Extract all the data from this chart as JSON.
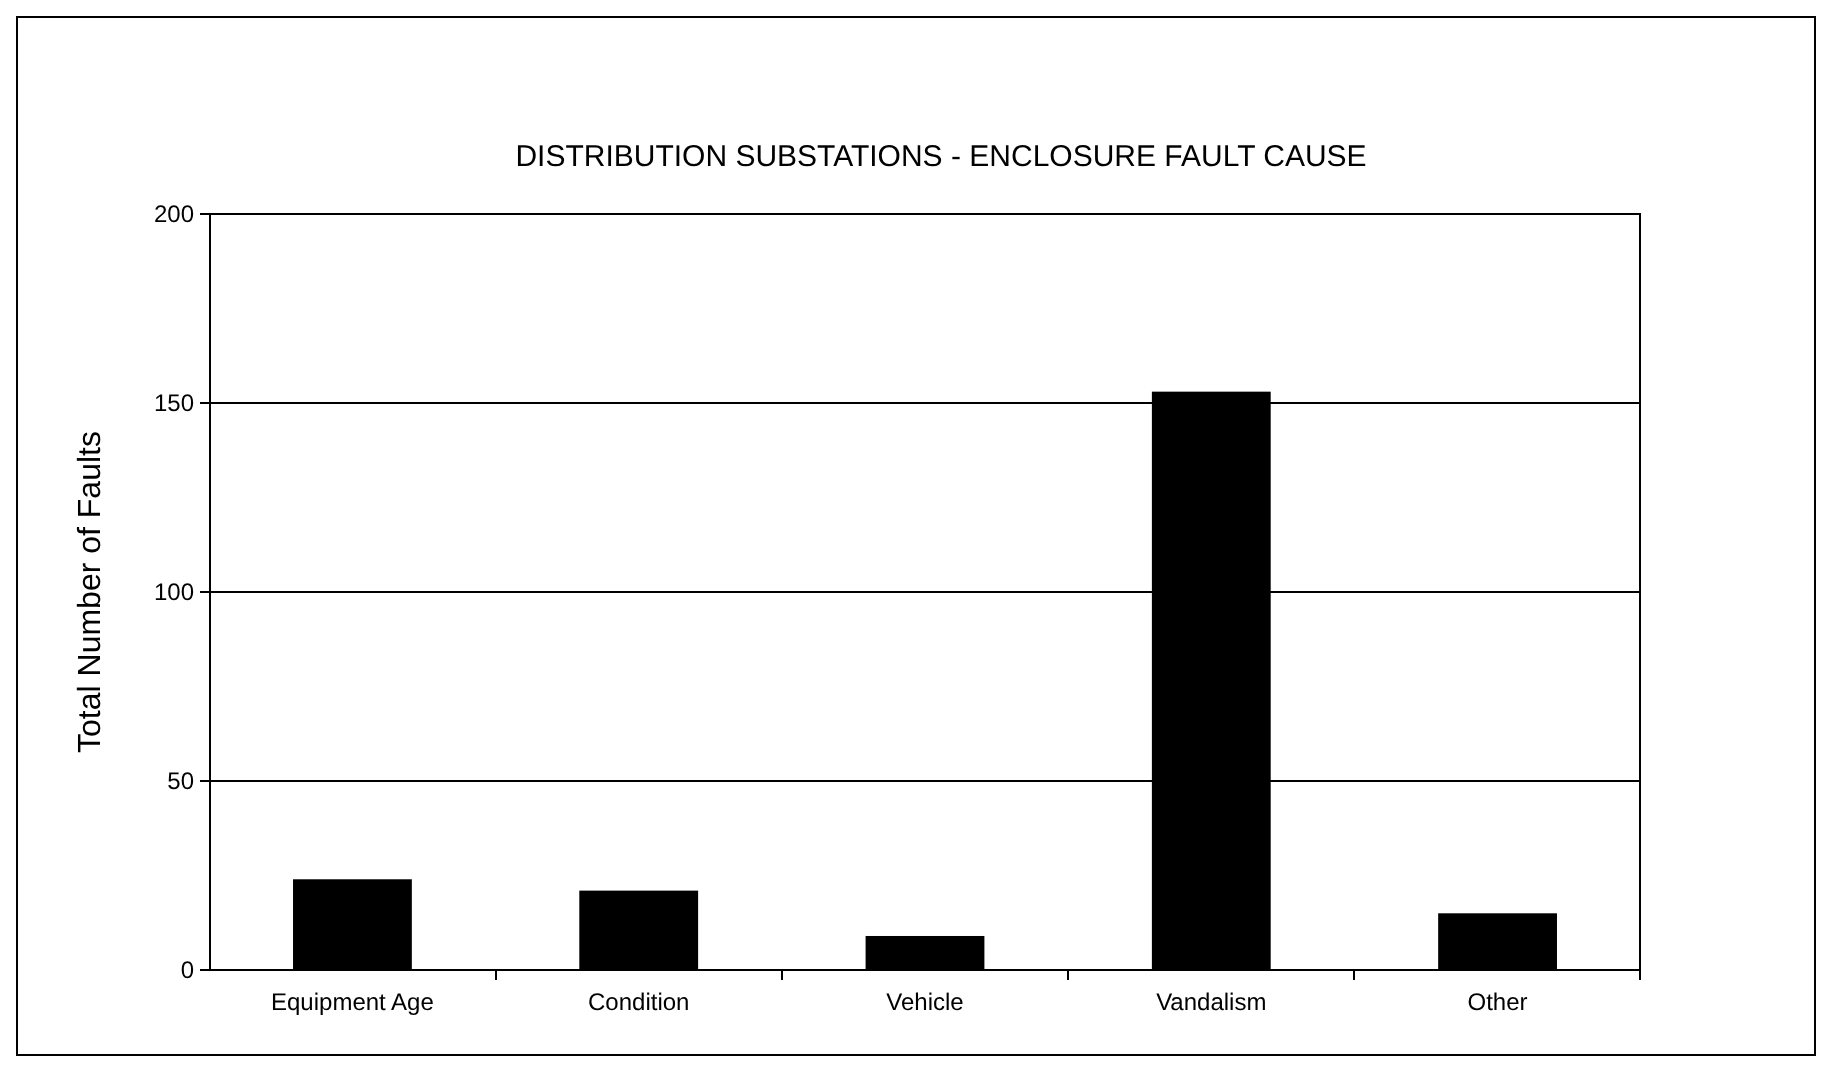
{
  "chart_data": {
    "type": "bar",
    "title": "DISTRIBUTION SUBSTATIONS - ENCLOSURE FAULT CAUSE",
    "ylabel": "Total Number of Faults",
    "categories": [
      "Equipment Age",
      "Condition",
      "Vehicle",
      "Vandalism",
      "Other"
    ],
    "values": [
      24,
      21,
      9,
      153,
      15
    ],
    "color": "#000000",
    "ylim": [
      0,
      200
    ],
    "yticks": [
      0,
      50,
      100,
      150,
      200
    ],
    "grid": "y"
  }
}
